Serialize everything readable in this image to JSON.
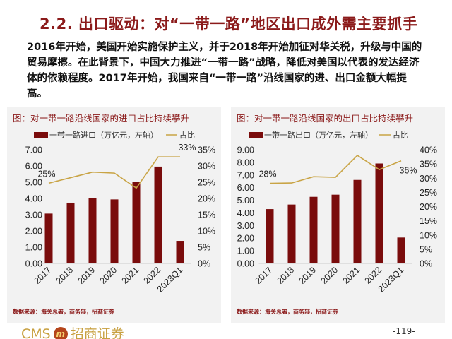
{
  "slide": {
    "title": "2.2. 出口驱动：对“一带一路”地区出口成外需主要抓手",
    "body": "2016年开始，美国开始实施保护主义，并于2018年开始加征对华关税，升级与中国的贸易摩擦。在此背景下，中国大力推进“一带一路”战略，降低对美国以代表的发达经济体的依赖程度。2017年开始，我国来自“一带一路”沿线国家的进、出口金额大幅提高。",
    "page_number": "-119-",
    "logo_text": "CMS 招商证券"
  },
  "colors": {
    "title": "#8b1a1a",
    "bar": "#7a0c0c",
    "line": "#c9a445",
    "panel_bg": "#f2f2f2"
  },
  "chart_data": [
    {
      "type": "bar",
      "title": "图：对一带一路沿线国家的进口占比持续攀升",
      "source": "数据来源：海关总署，商务部，招商证券",
      "categories": [
        "2017",
        "2018",
        "2019",
        "2020",
        "2021",
        "2022",
        "2023Q1"
      ],
      "series": [
        {
          "name": "一带一路进口（万亿元，左轴）",
          "type": "bar",
          "axis": "left",
          "values": [
            3.07,
            3.74,
            4.03,
            3.94,
            5.01,
            5.96,
            1.39
          ]
        },
        {
          "name": "占比",
          "type": "line",
          "axis": "right",
          "values": [
            24.7,
            26.4,
            28.1,
            27.8,
            23.2,
            32.8,
            32.8
          ]
        }
      ],
      "annotations": [
        {
          "category": "2017",
          "text": "25%"
        },
        {
          "category": "2023Q1",
          "text": "33%"
        }
      ],
      "left_axis": {
        "ylim": [
          0,
          7
        ],
        "ticks": [
          "0.00",
          "1.00",
          "2.00",
          "3.00",
          "4.00",
          "5.00",
          "6.00",
          "7.00"
        ]
      },
      "right_axis": {
        "ylim": [
          0,
          35
        ],
        "ticks": [
          "0%",
          "5%",
          "10%",
          "15%",
          "20%",
          "25%",
          "30%",
          "35%"
        ]
      },
      "grid": false,
      "legend": "top"
    },
    {
      "type": "bar",
      "title": "图：对一带一路沿线国家的出口占比持续攀升",
      "source": "数据来源：海关总署，商务部，招商证券",
      "categories": [
        "2017",
        "2018",
        "2019",
        "2020",
        "2021",
        "2022",
        "2023Q1"
      ],
      "series": [
        {
          "name": "一带一路出口（万亿元，左轴）",
          "type": "bar",
          "axis": "left",
          "values": [
            4.3,
            4.66,
            5.27,
            5.44,
            6.61,
            7.91,
            2.05
          ]
        },
        {
          "name": "占比",
          "type": "line",
          "axis": "right",
          "values": [
            28.2,
            28.3,
            30.5,
            30.3,
            38.0,
            33.0,
            36.1
          ]
        }
      ],
      "annotations": [
        {
          "category": "2017",
          "text": "28%"
        },
        {
          "category": "2023Q1",
          "text": "36%"
        }
      ],
      "left_axis": {
        "ylim": [
          0,
          9
        ],
        "ticks": [
          "0.00",
          "1.00",
          "2.00",
          "3.00",
          "4.00",
          "5.00",
          "6.00",
          "7.00",
          "8.00",
          "9.00"
        ]
      },
      "right_axis": {
        "ylim": [
          0,
          40
        ],
        "ticks": [
          "0%",
          "5%",
          "10%",
          "15%",
          "20%",
          "25%",
          "30%",
          "35%",
          "40%"
        ]
      },
      "grid": false,
      "legend": "top"
    }
  ]
}
